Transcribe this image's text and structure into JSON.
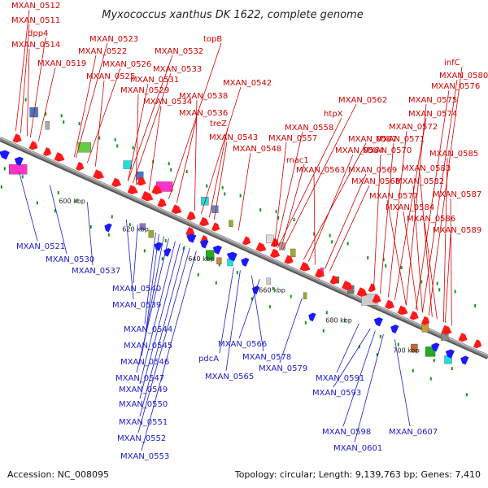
{
  "title": "Myxococcus xanthus DK 1622, complete genome",
  "footer": {
    "accession": "Accession: NC_008095",
    "summary": "Topology: circular; Length: 9,139,763 bp; Genes: 7,410"
  },
  "colors": {
    "forward_gene": "#ff1a1a",
    "reverse_gene": "#1a1aff",
    "forward_label": "#d40000",
    "reverse_label": "#1a1acc",
    "backbone": "#888888",
    "feature_pink": "#ff33cc",
    "feature_cyan": "#22dddd",
    "feature_olive": "#99aa33",
    "feature_gray": "#aaaaaa",
    "feature_green": "#22aa22"
  },
  "ticks": [
    "600 kbp",
    "620 kbp",
    "640 kbp",
    "660 kbp",
    "680 kbp",
    "700 kbp"
  ],
  "forward_labels": [
    "MXAN_0512",
    "MXAN_0511",
    "dpp4",
    "MXAN_0514",
    "MXAN_0519",
    "MXAN_0523",
    "MXAN_0522",
    "MXAN_0526",
    "MXAN_0525",
    "MXAN_0532",
    "MXAN_0533",
    "MXAN_0531",
    "MXAN_0529",
    "MXAN_0534",
    "topB",
    "MXAN_0538",
    "MXAN_0542",
    "MXAN_0536",
    "treZ",
    "MXAN_0543",
    "MXAN_0548",
    "MXAN_0562",
    "htpX",
    "MXAN_0558",
    "MXAN_0557",
    "MXAN_0567",
    "MXAN_0564",
    "mac1",
    "MXAN_0563",
    "MXAN_0568",
    "MXAN_0569",
    "infC",
    "MXAN_0580",
    "MXAN_0576",
    "MXAN_0575",
    "MXAN_0574",
    "MXAN_0572",
    "MXAN_0571",
    "MXAN_0570",
    "MXAN_0585",
    "MXAN_0583",
    "MXAN_0582",
    "MXAN_0577",
    "MXAN_0584",
    "MXAN_0587",
    "MXAN_0586",
    "MXAN_0589"
  ],
  "reverse_labels": [
    "MXAN_0521",
    "MXAN_0530",
    "MXAN_0537",
    "MXAN_0540",
    "MXAN_0539",
    "MXAN_0544",
    "MXAN_0545",
    "MXAN_0546",
    "MXAN_0547",
    "MXAN_0549",
    "MXAN_0550",
    "MXAN_0551",
    "MXAN_0552",
    "MXAN_0553",
    "pdcA",
    "MXAN_0566",
    "MXAN_0565",
    "MXAN_0578",
    "MXAN_0579",
    "MXAN_0591",
    "MXAN_0593",
    "MXAN_0598",
    "MXAN_0601",
    "MXAN_0607"
  ]
}
